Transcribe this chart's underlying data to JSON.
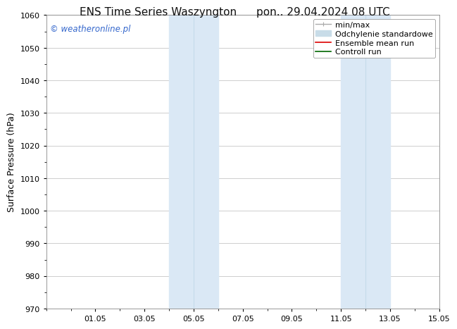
{
  "title_left": "ENS Time Series Waszyngton",
  "title_right": "pon.. 29.04.2024 08 UTC",
  "ylabel": "Surface Pressure (hPa)",
  "ylim": [
    970,
    1060
  ],
  "yticks": [
    970,
    980,
    990,
    1000,
    1010,
    1020,
    1030,
    1040,
    1050,
    1060
  ],
  "xtick_labels": [
    "01.05",
    "03.05",
    "05.05",
    "07.05",
    "09.05",
    "11.05",
    "13.05",
    "15.05"
  ],
  "xtick_positions": [
    2,
    4,
    6,
    8,
    10,
    12,
    14,
    16
  ],
  "xlim": [
    0,
    16
  ],
  "background_color": "#ffffff",
  "plot_bg_color": "#ffffff",
  "band1_x0": 5.0,
  "band1_x1": 7.0,
  "band1_mid": 6.0,
  "band2_x0": 12.0,
  "band2_x1": 14.0,
  "band2_mid": 13.0,
  "band_color": "#dae8f5",
  "band_line_color": "#c5daea",
  "watermark_text": "© weatheronline.pl",
  "watermark_color": "#3366cc",
  "watermark_fontsize": 8.5,
  "legend_items": [
    {
      "label": "min/max",
      "color": "#aaaaaa",
      "lw": 1.0
    },
    {
      "label": "Odchylenie standardowe",
      "color": "#c8dce8",
      "lw": 5
    },
    {
      "label": "Ensemble mean run",
      "color": "#dd0000",
      "lw": 1.2
    },
    {
      "label": "Controll run",
      "color": "#006600",
      "lw": 1.2
    }
  ],
  "grid_color": "#bbbbbb",
  "tick_label_fontsize": 8,
  "axis_label_fontsize": 9,
  "title_fontsize": 11,
  "legend_fontsize": 8
}
